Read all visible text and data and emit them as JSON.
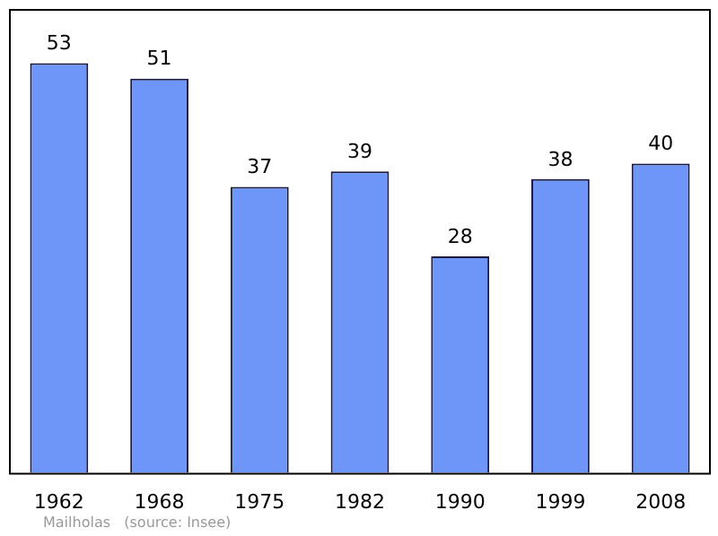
{
  "chart_data": {
    "type": "bar",
    "categories": [
      "1962",
      "1968",
      "1975",
      "1982",
      "1990",
      "1999",
      "2008"
    ],
    "values": [
      53,
      51,
      37,
      39,
      28,
      38,
      40
    ],
    "color": "#6e96f8",
    "ylim": [
      0,
      60
    ],
    "tick_labels": "x",
    "data_labels": true,
    "grid": false,
    "legend": false,
    "annotations": [
      "Mailholas   (source: Insee)"
    ]
  }
}
